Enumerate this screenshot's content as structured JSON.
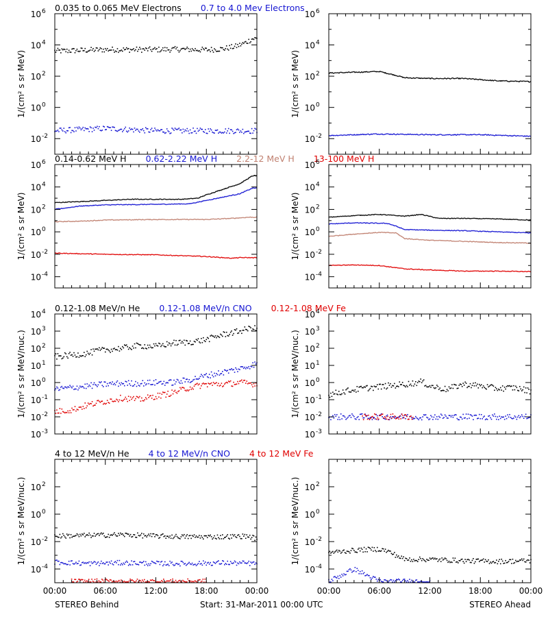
{
  "chart_data": [
    {
      "type": "scatter",
      "panel": "row1-left",
      "titles": [
        {
          "text": "0.035 to 0.065 MeV Electrons",
          "color": "#000000"
        },
        {
          "text": "0.7 to 4.0 Mev Electrons",
          "color": "#1515d2"
        }
      ],
      "ylabel": "1/(cm² s sr MeV)",
      "ylog": true,
      "ylim_exp": [
        -3,
        6
      ],
      "ytick_exps": [
        -2,
        0,
        2,
        4,
        6
      ],
      "xlim_hours": [
        0,
        24
      ],
      "series": [
        {
          "color": "#000000",
          "points": [
            [
              0,
              3.6
            ],
            [
              3,
              3.65
            ],
            [
              6,
              3.7
            ],
            [
              9,
              3.7
            ],
            [
              12,
              3.7
            ],
            [
              15,
              3.72
            ],
            [
              18,
              3.68
            ],
            [
              20,
              3.75
            ],
            [
              21.5,
              3.9
            ],
            [
              22.5,
              4.1
            ],
            [
              23.5,
              4.4
            ],
            [
              24,
              4.4
            ]
          ]
        },
        {
          "color": "#1515d2",
          "points": [
            [
              0,
              -1.5
            ],
            [
              6,
              -1.35
            ],
            [
              12,
              -1.5
            ],
            [
              18,
              -1.5
            ],
            [
              24,
              -1.5
            ]
          ]
        }
      ]
    },
    {
      "type": "line",
      "panel": "row1-right",
      "titles": [],
      "ylabel": "1/(cm² s sr MeV)",
      "ylog": true,
      "ylim_exp": [
        -3,
        6
      ],
      "ytick_exps": [
        -2,
        0,
        2,
        4,
        6
      ],
      "xlim_hours": [
        0,
        24
      ],
      "series": [
        {
          "color": "#000000",
          "points": [
            [
              0,
              2.2
            ],
            [
              3,
              2.25
            ],
            [
              6,
              2.3
            ],
            [
              8,
              2.05
            ],
            [
              9,
              1.9
            ],
            [
              12,
              1.85
            ],
            [
              16,
              1.85
            ],
            [
              20,
              1.7
            ],
            [
              24,
              1.65
            ]
          ]
        },
        {
          "color": "#1515d2",
          "points": [
            [
              0,
              -1.8
            ],
            [
              6,
              -1.7
            ],
            [
              12,
              -1.75
            ],
            [
              18,
              -1.75
            ],
            [
              24,
              -1.85
            ]
          ]
        }
      ]
    },
    {
      "type": "line",
      "panel": "row2-left",
      "titles": [
        {
          "text": "0.14-0.62 MeV H",
          "color": "#000000"
        },
        {
          "text": "0.62-2.22 MeV H",
          "color": "#1515d2"
        },
        {
          "text": "2.2-12 MeV H",
          "color": "#c08070"
        },
        {
          "text": "13-100 MeV H",
          "color": "#e00000"
        }
      ],
      "ylabel": "1/(cm² s sr MeV)",
      "ylog": true,
      "ylim_exp": [
        -5,
        6
      ],
      "ytick_exps": [
        -4,
        -2,
        0,
        2,
        4,
        6
      ],
      "xlim_hours": [
        0,
        24
      ],
      "series": [
        {
          "color": "#000000",
          "points": [
            [
              0,
              2.6
            ],
            [
              3,
              2.7
            ],
            [
              6,
              2.8
            ],
            [
              9,
              2.9
            ],
            [
              12,
              2.9
            ],
            [
              15,
              2.9
            ],
            [
              17,
              3.0
            ],
            [
              18,
              3.3
            ],
            [
              20,
              3.8
            ],
            [
              22,
              4.3
            ],
            [
              23.5,
              5.0
            ],
            [
              24,
              5.0
            ]
          ]
        },
        {
          "color": "#1515d2",
          "points": [
            [
              0,
              2.0
            ],
            [
              3,
              2.3
            ],
            [
              6,
              2.4
            ],
            [
              12,
              2.45
            ],
            [
              16,
              2.5
            ],
            [
              18,
              2.8
            ],
            [
              20,
              3.1
            ],
            [
              22,
              3.4
            ],
            [
              23.5,
              3.9
            ],
            [
              24,
              3.9
            ]
          ]
        },
        {
          "color": "#c08070",
          "points": [
            [
              0,
              0.9
            ],
            [
              3,
              0.95
            ],
            [
              6,
              1.05
            ],
            [
              12,
              1.1
            ],
            [
              18,
              1.1
            ],
            [
              21,
              1.2
            ],
            [
              23,
              1.3
            ],
            [
              24,
              1.3
            ]
          ]
        },
        {
          "color": "#e00000",
          "points": [
            [
              0,
              -1.9
            ],
            [
              3,
              -1.95
            ],
            [
              6,
              -2.0
            ],
            [
              12,
              -2.05
            ],
            [
              18,
              -2.2
            ],
            [
              21,
              -2.35
            ],
            [
              22,
              -2.3
            ],
            [
              24,
              -2.3
            ]
          ]
        }
      ]
    },
    {
      "type": "line",
      "panel": "row2-right",
      "titles": [],
      "ylabel": "1/(cm² s sr MeV)",
      "ylog": true,
      "ylim_exp": [
        -5,
        6
      ],
      "ytick_exps": [
        -4,
        -2,
        0,
        2,
        4,
        6
      ],
      "xlim_hours": [
        0,
        24
      ],
      "series": [
        {
          "color": "#000000",
          "points": [
            [
              0,
              1.3
            ],
            [
              3,
              1.45
            ],
            [
              6,
              1.55
            ],
            [
              9,
              1.4
            ],
            [
              11,
              1.55
            ],
            [
              13,
              1.2
            ],
            [
              16,
              1.2
            ],
            [
              20,
              1.15
            ],
            [
              24,
              1.05
            ]
          ]
        },
        {
          "color": "#1515d2",
          "points": [
            [
              0,
              0.7
            ],
            [
              3,
              0.8
            ],
            [
              7,
              0.75
            ],
            [
              8,
              0.5
            ],
            [
              9,
              0.2
            ],
            [
              12,
              0.15
            ],
            [
              16,
              0.1
            ],
            [
              20,
              0.0
            ],
            [
              24,
              -0.1
            ]
          ]
        },
        {
          "color": "#c08070",
          "points": [
            [
              0,
              -0.4
            ],
            [
              3,
              -0.2
            ],
            [
              6,
              -0.05
            ],
            [
              8,
              -0.1
            ],
            [
              9,
              -0.6
            ],
            [
              12,
              -0.75
            ],
            [
              16,
              -0.85
            ],
            [
              20,
              -0.95
            ],
            [
              24,
              -1.0
            ]
          ]
        },
        {
          "color": "#e00000",
          "points": [
            [
              0,
              -3.0
            ],
            [
              3,
              -2.95
            ],
            [
              6,
              -3.0
            ],
            [
              9,
              -3.3
            ],
            [
              12,
              -3.4
            ],
            [
              16,
              -3.5
            ],
            [
              20,
              -3.5
            ],
            [
              24,
              -3.55
            ]
          ]
        }
      ]
    },
    {
      "type": "scatter",
      "panel": "row3-left",
      "titles": [
        {
          "text": "0.12-1.08 MeV/n He",
          "color": "#000000"
        },
        {
          "text": "0.12-1.08 MeV/n CNO",
          "color": "#1515d2"
        },
        {
          "text": "0.12-1.08 MeV Fe",
          "color": "#e00000"
        }
      ],
      "ylabel": "1/(cm² s sr MeV/nuc.)",
      "ylog": true,
      "ylim_exp": [
        -3,
        4
      ],
      "ytick_exps": [
        -3,
        -2,
        -1,
        0,
        1,
        2,
        3,
        4
      ],
      "ytick_labels_full": true,
      "xlim_hours": [
        0,
        24
      ],
      "series": [
        {
          "color": "#000000",
          "points": [
            [
              0,
              1.5
            ],
            [
              2,
              1.6
            ],
            [
              4,
              1.7
            ],
            [
              5,
              1.85
            ],
            [
              6,
              1.9
            ],
            [
              8,
              2.0
            ],
            [
              10,
              2.15
            ],
            [
              12,
              2.1
            ],
            [
              14,
              2.3
            ],
            [
              16,
              2.35
            ],
            [
              18,
              2.5
            ],
            [
              20,
              2.8
            ],
            [
              22,
              3.0
            ],
            [
              23.5,
              3.2
            ],
            [
              24,
              3.1
            ]
          ]
        },
        {
          "color": "#1515d2",
          "points": [
            [
              0,
              -0.4
            ],
            [
              2,
              -0.3
            ],
            [
              4,
              -0.2
            ],
            [
              6,
              -0.1
            ],
            [
              8,
              -0.05
            ],
            [
              10,
              -0.05
            ],
            [
              12,
              0.0
            ],
            [
              14,
              0.0
            ],
            [
              16,
              0.15
            ],
            [
              18,
              0.4
            ],
            [
              20,
              0.6
            ],
            [
              22,
              0.8
            ],
            [
              24,
              1.1
            ]
          ]
        },
        {
          "color": "#e00000",
          "points": [
            [
              0,
              -1.7
            ],
            [
              2,
              -1.6
            ],
            [
              4,
              -1.3
            ],
            [
              6,
              -1.1
            ],
            [
              8,
              -0.9
            ],
            [
              10,
              -1.0
            ],
            [
              12,
              -0.8
            ],
            [
              14,
              -0.6
            ],
            [
              16,
              -0.3
            ],
            [
              18,
              -0.1
            ],
            [
              20,
              -0.1
            ],
            [
              22,
              0.0
            ],
            [
              24,
              -0.1
            ]
          ]
        }
      ]
    },
    {
      "type": "scatter",
      "panel": "row3-right",
      "titles": [],
      "ylabel": "1/(cm² s sr MeV/nuc.)",
      "ylog": true,
      "ylim_exp": [
        -3,
        4
      ],
      "ytick_exps": [
        -3,
        -2,
        -1,
        0,
        1,
        2,
        3,
        4
      ],
      "ytick_labels_full": true,
      "xlim_hours": [
        0,
        24
      ],
      "series": [
        {
          "color": "#000000",
          "points": [
            [
              0,
              -0.7
            ],
            [
              2,
              -0.5
            ],
            [
              4,
              -0.35
            ],
            [
              6,
              -0.25
            ],
            [
              8,
              -0.15
            ],
            [
              10,
              -0.05
            ],
            [
              11,
              0.05
            ],
            [
              12,
              -0.2
            ],
            [
              14,
              -0.4
            ],
            [
              16,
              -0.1
            ],
            [
              18,
              -0.2
            ],
            [
              20,
              -0.35
            ],
            [
              22,
              -0.3
            ],
            [
              24,
              -0.5
            ]
          ]
        },
        {
          "color": "#1515d2",
          "points": [
            [
              0,
              -2.0
            ],
            [
              6,
              -2.0
            ],
            [
              12,
              -2.0
            ],
            [
              18,
              -2.0
            ],
            [
              24,
              -2.0
            ]
          ]
        },
        {
          "color": "#e00000",
          "points": [
            [
              4,
              -2.0
            ],
            [
              8,
              -2.0
            ],
            [
              10,
              -2.0
            ]
          ]
        }
      ]
    },
    {
      "type": "scatter",
      "panel": "row4-left",
      "titles": [
        {
          "text": "4 to 12 MeV/n He",
          "color": "#000000"
        },
        {
          "text": "4 to 12 MeV/n CNO",
          "color": "#1515d2"
        },
        {
          "text": "4 to 12 MeV Fe",
          "color": "#e00000"
        }
      ],
      "ylabel": "1/(cm² s sr MeV/nuc.)",
      "ylog": true,
      "ylim_exp": [
        -5,
        4
      ],
      "ytick_exps": [
        -4,
        -2,
        0,
        2
      ],
      "xlim_hours": [
        0,
        24
      ],
      "series": [
        {
          "color": "#000000",
          "points": [
            [
              0,
              -1.6
            ],
            [
              4,
              -1.55
            ],
            [
              8,
              -1.5
            ],
            [
              12,
              -1.6
            ],
            [
              16,
              -1.65
            ],
            [
              20,
              -1.65
            ],
            [
              23,
              -1.6
            ],
            [
              24,
              -1.8
            ]
          ]
        },
        {
          "color": "#1515d2",
          "points": [
            [
              0,
              -3.5
            ],
            [
              4,
              -3.6
            ],
            [
              8,
              -3.55
            ],
            [
              12,
              -3.6
            ],
            [
              16,
              -3.6
            ],
            [
              20,
              -3.55
            ],
            [
              24,
              -3.6
            ]
          ]
        },
        {
          "color": "#e00000",
          "points": [
            [
              2,
              -4.9
            ],
            [
              10,
              -4.9
            ],
            [
              18,
              -4.9
            ]
          ]
        }
      ]
    },
    {
      "type": "scatter",
      "panel": "row4-right",
      "titles": [],
      "ylabel": "1/(cm² s sr MeV/nuc.)",
      "ylog": true,
      "ylim_exp": [
        -5,
        4
      ],
      "ytick_exps": [
        -4,
        -2,
        0,
        2
      ],
      "xlim_hours": [
        0,
        24
      ],
      "series": [
        {
          "color": "#000000",
          "points": [
            [
              0,
              -2.8
            ],
            [
              2,
              -2.7
            ],
            [
              4,
              -2.6
            ],
            [
              6,
              -2.55
            ],
            [
              7,
              -2.7
            ],
            [
              8,
              -3.0
            ],
            [
              9,
              -3.3
            ],
            [
              12,
              -3.3
            ],
            [
              16,
              -3.4
            ],
            [
              20,
              -3.45
            ],
            [
              24,
              -3.4
            ]
          ]
        },
        {
          "color": "#1515d2",
          "points": [
            [
              0,
              -4.9
            ],
            [
              3,
              -4.0
            ],
            [
              6,
              -4.9
            ],
            [
              12,
              -4.9
            ]
          ]
        }
      ]
    }
  ],
  "xaxis": {
    "tick_labels": [
      "00:00",
      "06:00",
      "12:00",
      "18:00",
      "00:00"
    ]
  },
  "footer": {
    "left": "STEREO Behind",
    "center": "Start: 31-Mar-2011 00:00 UTC",
    "right": "STEREO Ahead"
  }
}
